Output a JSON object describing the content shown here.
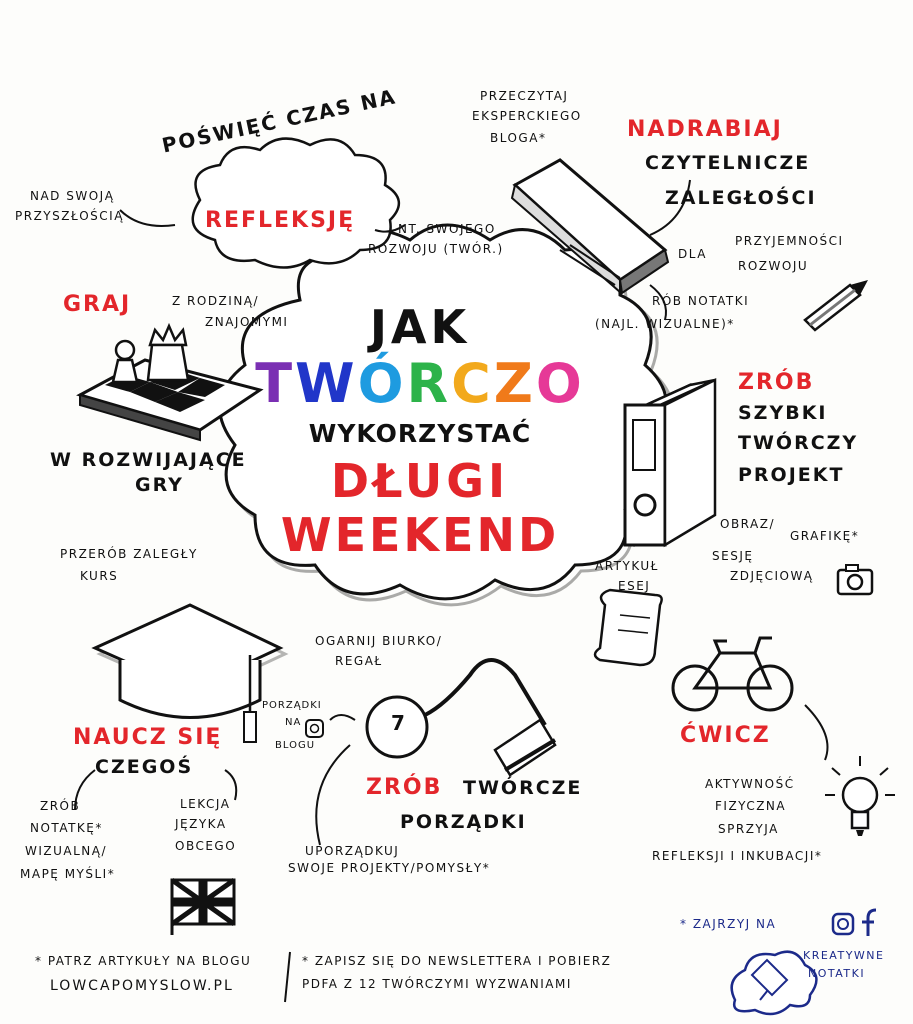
{
  "colors": {
    "accent_red": "#e3262b",
    "ink": "#111111",
    "note_blue": "#1c2a8a",
    "shadow": "#9a9a9a"
  },
  "center": {
    "line1": "JAK",
    "rainbow_letters": [
      {
        "ch": "T",
        "color": "#7a2fb3"
      },
      {
        "ch": "W",
        "color": "#2136c9"
      },
      {
        "ch": "Ó",
        "color": "#1e9be0"
      },
      {
        "ch": "R",
        "color": "#2db34a"
      },
      {
        "ch": "C",
        "color": "#f2a91c"
      },
      {
        "ch": "Z",
        "color": "#f07a1a"
      },
      {
        "ch": "O",
        "color": "#e63997"
      }
    ],
    "line3": "WYKORZYSTAĆ",
    "line4": "DŁUGI",
    "line5": "WEEKEND"
  },
  "reflection": {
    "heading": "POŚWIĘĆ CZAS NA",
    "keyword": "REFLEKSJĘ",
    "left_note": [
      "NAD SWOJĄ",
      "PRZYSZŁOŚCIĄ"
    ],
    "right_note": [
      "NT. SWOJEGO",
      "ROZWOJU (TWÓR.)"
    ]
  },
  "reading": {
    "top_note": [
      "PRZECZYTAJ",
      "EKSPERCKIEGO",
      "BLOGA*"
    ],
    "keyword": "NADRABIAJ",
    "lines": [
      "CZYTELNICZE",
      "ZALEGŁOŚCI"
    ],
    "dla": "DLA",
    "purposes": [
      "PRZYJEMNOŚCI",
      "ROZWOJU"
    ],
    "notes": [
      "RÓB NOTATKI",
      "(NAJL. WIZUALNE)*"
    ]
  },
  "games": {
    "keyword": "GRAJ",
    "note": [
      "Z RODZINĄ/",
      "ZNAJOMYMI"
    ],
    "lines": [
      "W ROZWIJAJĄCE",
      "GRY"
    ]
  },
  "project": {
    "keyword": "ZRÓB",
    "lines": [
      "SZYBKI",
      "TWÓRCZY",
      "PROJEKT"
    ],
    "obraz": "OBRAZ/",
    "grafike": "GRAFIKĘ*",
    "artykul": [
      "ARTYKUŁ",
      "ESEJ"
    ],
    "sesje": [
      "SESJĘ",
      "ZDJĘCIOWĄ"
    ]
  },
  "course": {
    "note": [
      "PRZERÓB ZALEGŁY",
      "KURS"
    ]
  },
  "tidy": {
    "note": [
      "OGARNIJ BIURKO/",
      "REGAŁ"
    ],
    "porzadki": [
      "PORZĄDKI",
      "NA",
      "BLOGU"
    ],
    "keyword": "ZRÓB",
    "lines": [
      "TWÓRCZE",
      "PORZĄDKI"
    ],
    "sub": [
      "UPORZĄDKUJ",
      "SWOJE PROJEKTY/POMYSŁY*"
    ]
  },
  "exercise": {
    "keyword": "ĆWICZ",
    "lines": [
      "AKTYWNOŚĆ",
      "FIZYCZNA",
      "SPRZYJA",
      "REFLEKSJI I INKUBACJI*"
    ]
  },
  "learn": {
    "keyword": "NAUCZ SIĘ",
    "line": "CZEGOŚ",
    "left": [
      "ZRÓB",
      "NOTATKĘ*",
      "WIZUALNĄ/",
      "MAPĘ MYŚLI*"
    ],
    "right": [
      "LEKCJA",
      "JĘZYKA",
      "OBCEGO"
    ]
  },
  "footer": {
    "left": [
      "* PATRZ ARTYKUŁY NA BLOGU",
      "LOWCAPOMYSLOW.PL"
    ],
    "right": [
      "* ZAPISZ SIĘ DO NEWSLETTERA I POBIERZ",
      "PDFA Z 12 TWÓRCZYMI WYZWANIAMI"
    ],
    "social": "* ZAJRZYJ NA",
    "brand": [
      "KREATYWNE",
      "NOTATKI"
    ],
    "seven": "7"
  }
}
